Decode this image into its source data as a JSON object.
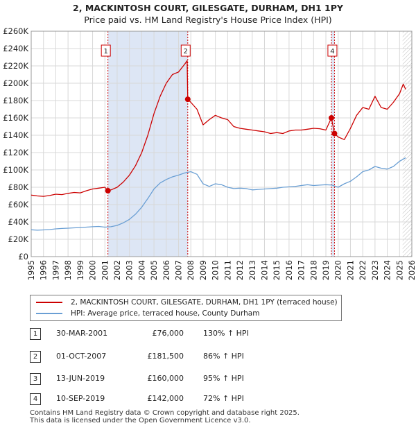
{
  "chart_data": {
    "type": "line",
    "title": "2, MACKINTOSH COURT, GILESGATE, DURHAM, DH1 1PY",
    "subtitle": "Price paid vs. HM Land Registry's House Price Index (HPI)",
    "xlim": [
      1995,
      2026
    ],
    "ylim": [
      0,
      260000
    ],
    "y_ticks": [
      0,
      20000,
      40000,
      60000,
      80000,
      100000,
      120000,
      140000,
      160000,
      180000,
      200000,
      220000,
      240000,
      260000
    ],
    "y_tick_labels": [
      "£0",
      "£20K",
      "£40K",
      "£60K",
      "£80K",
      "£100K",
      "£120K",
      "£140K",
      "£160K",
      "£180K",
      "£200K",
      "£220K",
      "£240K",
      "£260K"
    ],
    "x_ticks": [
      1995,
      1996,
      1997,
      1998,
      1999,
      2000,
      2001,
      2002,
      2003,
      2004,
      2005,
      2006,
      2007,
      2008,
      2009,
      2010,
      2011,
      2012,
      2013,
      2014,
      2015,
      2016,
      2017,
      2018,
      2019,
      2020,
      2021,
      2022,
      2023,
      2024,
      2025,
      2026
    ],
    "x_tick_labels": [
      "1995",
      "1996",
      "1997",
      "1998",
      "1999",
      "2000",
      "2001",
      "2002",
      "2003",
      "2004",
      "2005",
      "2006",
      "2007",
      "2008",
      "2009",
      "2010",
      "2011",
      "2012",
      "2013",
      "2014",
      "2015",
      "2016",
      "2017",
      "2018",
      "2019",
      "2020",
      "2021",
      "2022",
      "2023",
      "2024",
      "2025",
      "2026"
    ],
    "grid": true,
    "forecast_start": 2025.25,
    "shaded_ranges": [
      [
        2001.25,
        2007.75
      ],
      [
        2019.45,
        2019.7
      ]
    ],
    "series": [
      {
        "name": "2, MACKINTOSH COURT, GILESGATE, DURHAM, DH1 1PY (terraced house)",
        "color": "#cc0000",
        "x": [
          1995.0,
          1995.5,
          1996.0,
          1996.5,
          1997.0,
          1997.5,
          1998.0,
          1998.5,
          1999.0,
          1999.5,
          2000.0,
          2000.5,
          2001.0,
          2001.25,
          2001.5,
          2002.0,
          2002.5,
          2003.0,
          2003.5,
          2004.0,
          2004.5,
          2005.0,
          2005.5,
          2006.0,
          2006.5,
          2007.0,
          2007.5,
          2007.7,
          2007.75,
          2008.0,
          2008.5,
          2009.0,
          2009.5,
          2010.0,
          2010.5,
          2011.0,
          2011.5,
          2012.0,
          2012.5,
          2013.0,
          2013.5,
          2014.0,
          2014.5,
          2015.0,
          2015.5,
          2016.0,
          2016.5,
          2017.0,
          2017.5,
          2018.0,
          2018.5,
          2019.0,
          2019.45,
          2019.7,
          2020.0,
          2020.5,
          2021.0,
          2021.5,
          2022.0,
          2022.5,
          2023.0,
          2023.5,
          2024.0,
          2024.5,
          2025.0,
          2025.3,
          2025.5
        ],
        "values": [
          71000,
          70000,
          69500,
          70500,
          72000,
          71500,
          73000,
          74000,
          73500,
          76000,
          78000,
          79000,
          80000,
          76000,
          77000,
          80000,
          86000,
          94000,
          105000,
          120000,
          140000,
          165000,
          185000,
          200000,
          210000,
          213000,
          222000,
          226000,
          181500,
          178000,
          170000,
          152000,
          158000,
          163000,
          160000,
          158000,
          150000,
          148000,
          147000,
          146000,
          145000,
          144000,
          142000,
          143000,
          142000,
          145000,
          146000,
          146000,
          147000,
          148000,
          147500,
          146000,
          160000,
          142000,
          138000,
          135000,
          148000,
          163000,
          172000,
          170000,
          185000,
          172000,
          170000,
          178000,
          188000,
          199000,
          193000
        ]
      },
      {
        "name": "HPI: Average price, terraced house, County Durham",
        "color": "#6a9fd4",
        "x": [
          1995.0,
          1995.5,
          1996.0,
          1996.5,
          1997.0,
          1997.5,
          1998.0,
          1998.5,
          1999.0,
          1999.5,
          2000.0,
          2000.5,
          2001.0,
          2001.5,
          2002.0,
          2002.5,
          2003.0,
          2003.5,
          2004.0,
          2004.5,
          2005.0,
          2005.5,
          2006.0,
          2006.5,
          2007.0,
          2007.5,
          2008.0,
          2008.5,
          2009.0,
          2009.5,
          2010.0,
          2010.5,
          2011.0,
          2011.5,
          2012.0,
          2012.5,
          2013.0,
          2013.5,
          2014.0,
          2014.5,
          2015.0,
          2015.5,
          2016.0,
          2016.5,
          2017.0,
          2017.5,
          2018.0,
          2018.5,
          2019.0,
          2019.5,
          2020.0,
          2020.5,
          2021.0,
          2021.5,
          2022.0,
          2022.5,
          2023.0,
          2023.5,
          2024.0,
          2024.5,
          2025.0,
          2025.5
        ],
        "values": [
          31000,
          30500,
          30800,
          31200,
          32000,
          32500,
          32800,
          33200,
          33500,
          34000,
          34500,
          34800,
          34000,
          34500,
          36000,
          39000,
          43000,
          49000,
          57000,
          67000,
          78000,
          85000,
          89000,
          92000,
          94000,
          96500,
          98000,
          95000,
          84000,
          81000,
          84000,
          83000,
          80000,
          78500,
          79000,
          78500,
          77000,
          77500,
          78000,
          78500,
          79000,
          80000,
          80500,
          81000,
          82000,
          83000,
          82000,
          82500,
          83000,
          82500,
          80000,
          84000,
          87000,
          92000,
          98000,
          100000,
          104000,
          102000,
          101000,
          104000,
          110000,
          114000
        ]
      }
    ],
    "sales": [
      {
        "label": "1",
        "x": 2001.25,
        "value": 76000
      },
      {
        "label": "2",
        "x": 2007.75,
        "value": 181500
      },
      {
        "label": "3",
        "x": 2019.45,
        "value": 160000
      },
      {
        "label": "4",
        "x": 2019.7,
        "value": 142000
      }
    ],
    "chart_markers": [
      {
        "label": "1",
        "x": 2001.25
      },
      {
        "label": "2",
        "x": 2007.75
      },
      {
        "label": "4",
        "x": 2019.7
      }
    ]
  },
  "legend": {
    "entries": [
      {
        "label": "2, MACKINTOSH COURT, GILESGATE, DURHAM, DH1 1PY (terraced house)",
        "color": "#cc0000"
      },
      {
        "label": "HPI: Average price, terraced house, County Durham",
        "color": "#6a9fd4"
      }
    ]
  },
  "transactions": [
    {
      "num": "1",
      "date": "30-MAR-2001",
      "price": "£76,000",
      "hpi": "130% ↑ HPI"
    },
    {
      "num": "2",
      "date": "01-OCT-2007",
      "price": "£181,500",
      "hpi": "86% ↑ HPI"
    },
    {
      "num": "3",
      "date": "13-JUN-2019",
      "price": "£160,000",
      "hpi": "95% ↑ HPI"
    },
    {
      "num": "4",
      "date": "10-SEP-2019",
      "price": "£142,000",
      "hpi": "72% ↑ HPI"
    }
  ],
  "footer": {
    "line1": "Contains HM Land Registry data © Crown copyright and database right 2025.",
    "line2": "This data is licensed under the Open Government Licence v3.0."
  }
}
